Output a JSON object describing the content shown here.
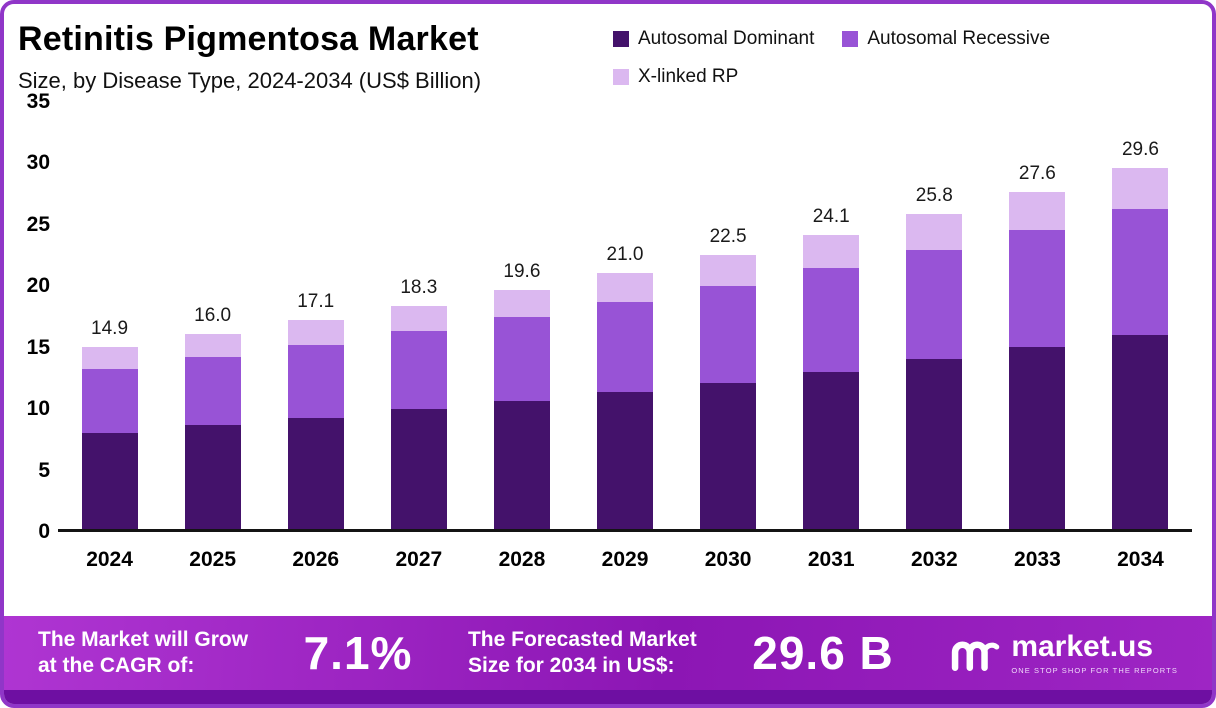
{
  "header": {
    "title": "Retinitis Pigmentosa Market",
    "subtitle": "Size, by Disease Type, 2024-2034 (US$ Billion)"
  },
  "chart_data": {
    "type": "bar",
    "stacked": true,
    "title": "Retinitis Pigmentosa Market Size, by Disease Type, 2024-2034 (US$ Billion)",
    "categories": [
      "2024",
      "2025",
      "2026",
      "2027",
      "2028",
      "2029",
      "2030",
      "2031",
      "2032",
      "2033",
      "2034"
    ],
    "series": [
      {
        "name": "Autosomal Dominant",
        "color": "#44126B",
        "values": [
          7.9,
          8.5,
          9.1,
          9.8,
          10.5,
          11.2,
          12.0,
          12.9,
          13.9,
          14.9,
          15.9
        ]
      },
      {
        "name": "Autosomal Recessive",
        "color": "#9853D6",
        "values": [
          5.2,
          5.6,
          6.0,
          6.4,
          6.9,
          7.4,
          7.9,
          8.5,
          9.0,
          9.6,
          10.3
        ]
      },
      {
        "name": "X-linked RP",
        "color": "#DBB8F0",
        "values": [
          1.8,
          1.9,
          2.0,
          2.1,
          2.2,
          2.4,
          2.6,
          2.7,
          2.9,
          3.1,
          3.4
        ]
      }
    ],
    "total_labels": [
      "14.9",
      "16.0",
      "17.1",
      "18.3",
      "19.6",
      "21.0",
      "22.5",
      "24.1",
      "25.8",
      "27.6",
      "29.6"
    ],
    "xlabel": "",
    "ylabel": "",
    "ylim": [
      0,
      35
    ],
    "yticks": [
      0,
      5,
      10,
      15,
      20,
      25,
      30,
      35
    ],
    "grid": false,
    "legend_position": "top-right"
  },
  "footer": {
    "cagr_label_line1": "The Market will Grow",
    "cagr_label_line2": "at the CAGR of:",
    "cagr_value": "7.1%",
    "forecast_label_line1": "The Forecasted Market",
    "forecast_label_line2": "Size for 2034 in US$:",
    "forecast_value": "29.6 B",
    "brand_name": "market.us",
    "brand_tagline": "ONE STOP SHOP FOR THE REPORTS"
  },
  "colors": {
    "frame_border": "#9036C8",
    "banner_top": "#AF35D2",
    "banner_bottom": "#8C16B4",
    "bottom_strip": "#6E0FA2",
    "axis_text": "#000000"
  }
}
